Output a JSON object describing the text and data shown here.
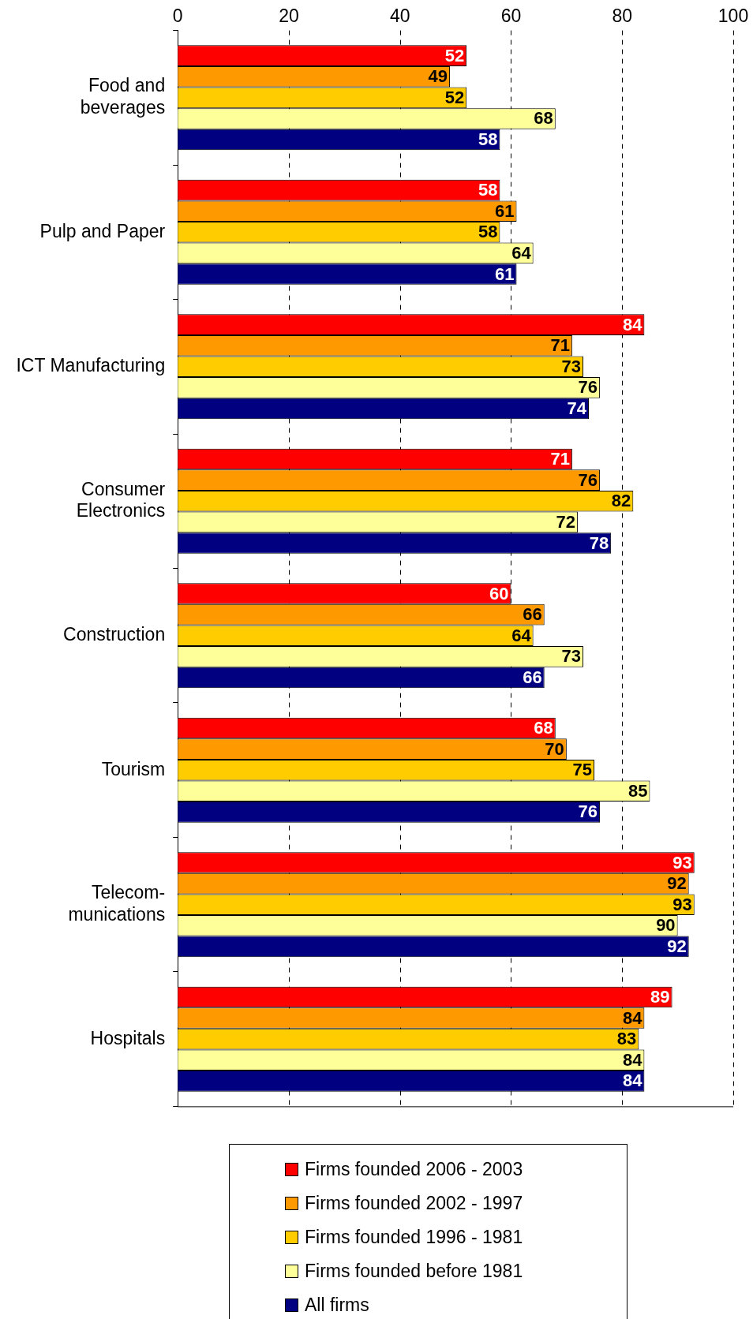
{
  "chart_data": {
    "type": "bar",
    "orientation": "horizontal",
    "categories": [
      "Food and\nbeverages",
      "Pulp and Paper",
      "ICT Manufacturing",
      "Consumer\nElectronics",
      "Construction",
      "Tourism",
      "Telecom-\nmunications",
      "Hospitals"
    ],
    "series": [
      {
        "name": "Firms founded 2006 - 2003",
        "color": "#ff0000",
        "values": [
          52,
          58,
          84,
          71,
          60,
          68,
          93,
          89
        ]
      },
      {
        "name": "Firms founded 2002 - 1997",
        "color": "#ff9900",
        "values": [
          49,
          61,
          71,
          76,
          66,
          70,
          92,
          84
        ]
      },
      {
        "name": "Firms founded 1996 - 1981",
        "color": "#ffcc00",
        "values": [
          52,
          58,
          73,
          82,
          64,
          75,
          93,
          83
        ]
      },
      {
        "name": "Firms founded before 1981",
        "color": "#ffff99",
        "values": [
          68,
          64,
          76,
          72,
          73,
          85,
          90,
          84
        ]
      },
      {
        "name": "All firms",
        "color": "#000080",
        "values": [
          58,
          61,
          74,
          78,
          66,
          76,
          92,
          84
        ]
      }
    ],
    "xlim": [
      0,
      100
    ],
    "xticks": [
      0,
      20,
      40,
      60,
      80,
      100
    ],
    "grid": "x",
    "data_labels": true,
    "legend": "bottom"
  }
}
